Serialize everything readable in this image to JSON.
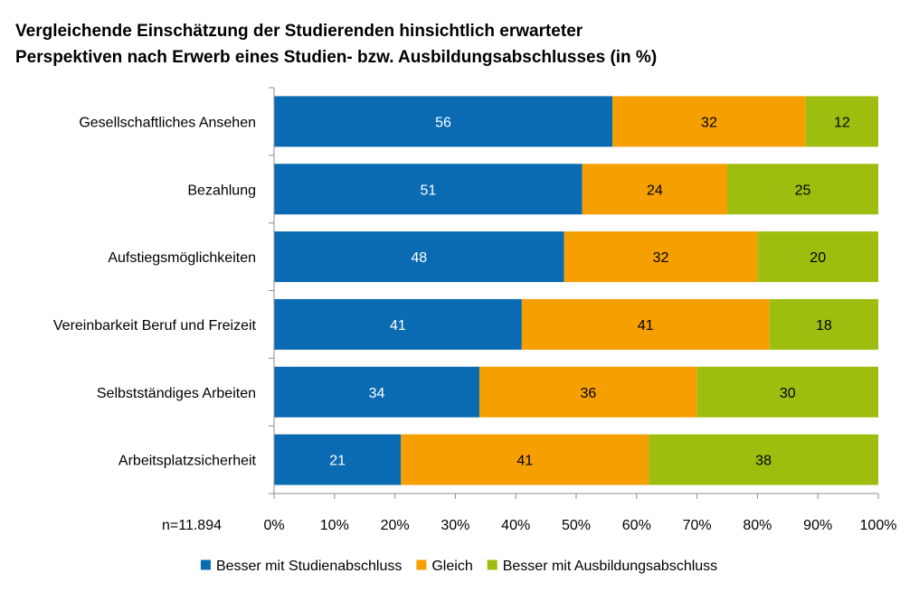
{
  "chart_data": {
    "type": "bar",
    "orientation": "horizontal",
    "stacked": true,
    "title": [
      "Vergleichende Einschätzung der Studierenden hinsichtlich erwarteter",
      "Perspektiven nach Erwerb eines Studien- bzw. Ausbildungsabschlusses  (in %)"
    ],
    "note": "n=11.894",
    "categories": [
      "Gesellschaftliches Ansehen",
      "Bezahlung",
      "Aufstiegsmöglichkeiten",
      "Vereinbarkeit Beruf und Freizeit",
      "Selbstständiges Arbeiten",
      "Arbeitsplatzsicherheit"
    ],
    "series": [
      {
        "name": "Besser mit Studienabschluss",
        "color": "#0a6bb3",
        "label_color": "#ffffff",
        "values": [
          56,
          51,
          48,
          41,
          34,
          21
        ]
      },
      {
        "name": "Gleich",
        "color": "#f59f00",
        "label_color": "#000000",
        "values": [
          32,
          24,
          32,
          41,
          36,
          41
        ]
      },
      {
        "name": "Besser mit Ausbildungsabschluss",
        "color": "#9dbe0e",
        "label_color": "#000000",
        "values": [
          12,
          25,
          20,
          18,
          30,
          38
        ]
      }
    ],
    "xlim": [
      0,
      100
    ],
    "x_ticks": [
      "0%",
      "10%",
      "20%",
      "30%",
      "40%",
      "50%",
      "60%",
      "70%",
      "80%",
      "90%",
      "100%"
    ],
    "grid": false,
    "legend_position": "bottom"
  }
}
